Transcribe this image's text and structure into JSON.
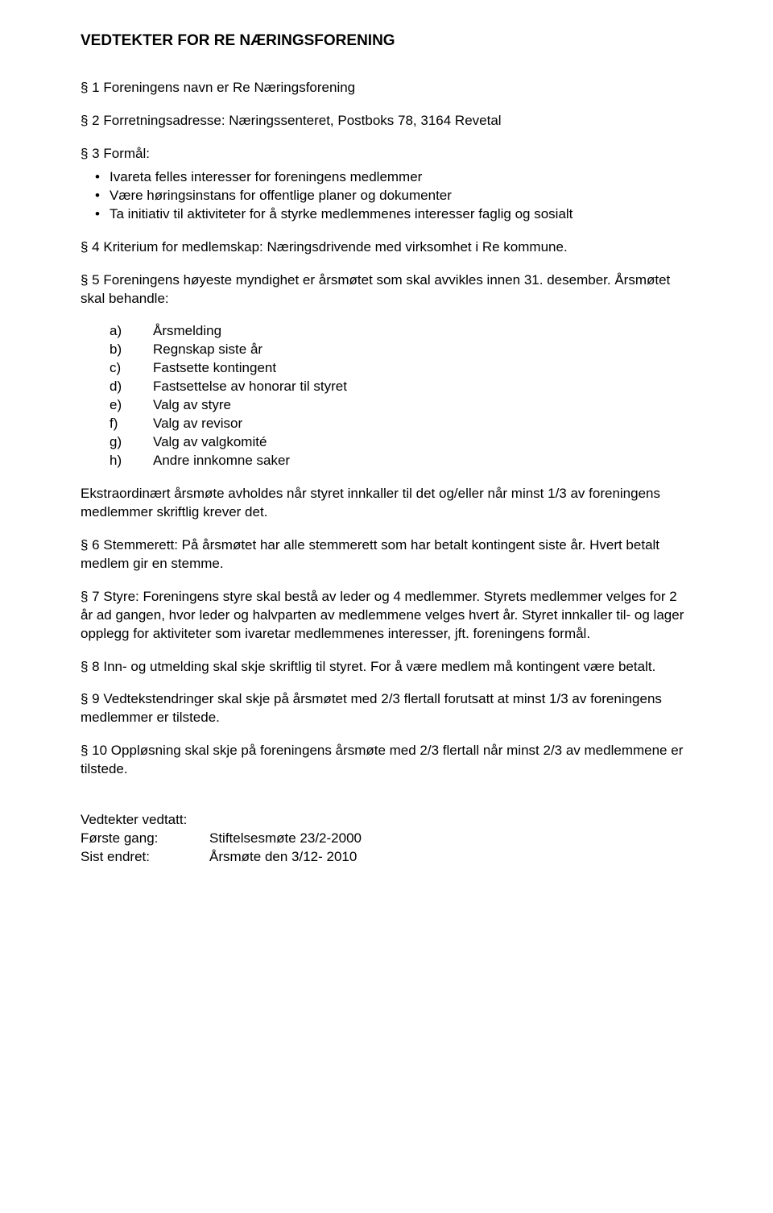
{
  "title": "VEDTEKTER FOR RE NÆRINGSFORENING",
  "s1": "§ 1 Foreningens navn er Re Næringsforening",
  "s2": "§ 2 Forretningsadresse: Næringssenteret, Postboks 78, 3164 Revetal",
  "s3": {
    "heading": "§ 3 Formål:",
    "bullets": [
      "Ivareta felles interesser for foreningens medlemmer",
      "Være høringsinstans for offentlige planer og dokumenter",
      "Ta initiativ til aktiviteter for å styrke medlemmenes interesser faglig og sosialt"
    ]
  },
  "s4": "§ 4 Kriterium for medlemskap: Næringsdrivende med virksomhet i Re kommune.",
  "s5": {
    "intro": "§ 5 Foreningens høyeste myndighet er årsmøtet som skal avvikles innen 31. desember. Årsmøtet skal behandle:",
    "items": [
      {
        "marker": "a)",
        "text": "Årsmelding"
      },
      {
        "marker": "b)",
        "text": "Regnskap siste år"
      },
      {
        "marker": "c)",
        "text": "Fastsette kontingent"
      },
      {
        "marker": "d)",
        "text": "Fastsettelse av honorar til styret"
      },
      {
        "marker": "e)",
        "text": "Valg av styre"
      },
      {
        "marker": "f)",
        "text": "Valg av revisor"
      },
      {
        "marker": "g)",
        "text": "Valg av valgkomité"
      },
      {
        "marker": "h)",
        "text": "Andre innkomne saker"
      }
    ],
    "extra": "Ekstraordinært årsmøte avholdes når styret innkaller til det og/eller når minst 1/3 av foreningens medlemmer skriftlig krever det."
  },
  "s6": "§ 6 Stemmerett: På årsmøtet har alle stemmerett som har betalt kontingent siste år. Hvert betalt medlem gir en stemme.",
  "s7": "§ 7 Styre: Foreningens styre skal bestå av leder og 4 medlemmer. Styrets medlemmer velges for 2 år ad gangen, hvor leder og halvparten av medlemmene velges hvert år. Styret innkaller til- og lager opplegg for aktiviteter som ivaretar medlemmenes interesser, jft. foreningens formål.",
  "s8": "§ 8 Inn- og utmelding skal skje skriftlig til styret. For å være medlem må kontingent være betalt.",
  "s9": "§ 9 Vedtekstendringer skal skje på årsmøtet med 2/3 flertall forutsatt at minst 1/3 av foreningens medlemmer er tilstede.",
  "s10": "§ 10 Oppløsning skal skje på foreningens årsmøte med 2/3 flertall når minst 2/3 av medlemmene er tilstede.",
  "footer": {
    "heading": "Vedtekter vedtatt:",
    "rows": [
      {
        "label": "Første gang:",
        "value": "Stiftelsesmøte 23/2-2000"
      },
      {
        "label": "Sist endret:",
        "value": "Årsmøte den 3/12- 2010"
      }
    ]
  }
}
